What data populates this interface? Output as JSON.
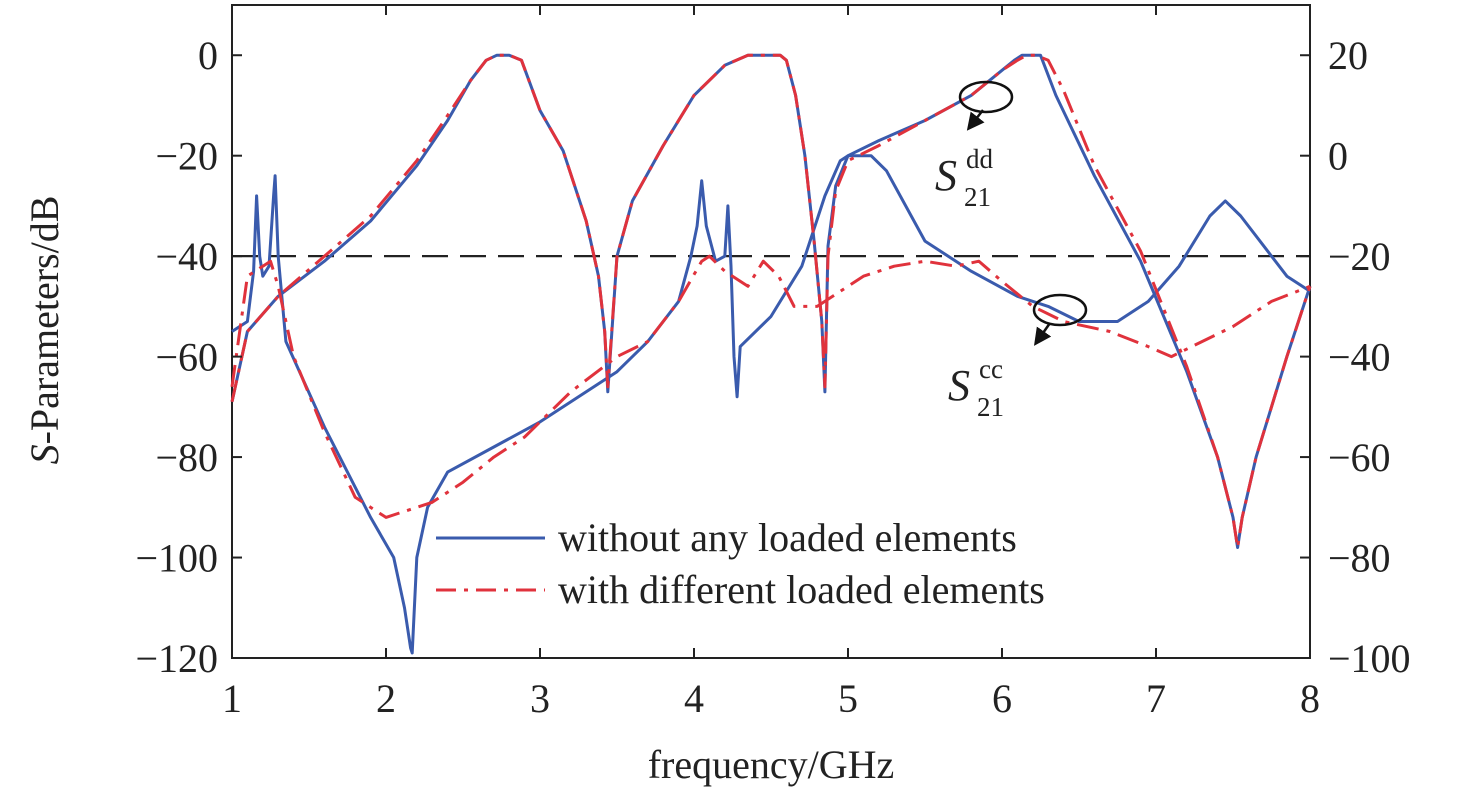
{
  "chart_data": {
    "type": "line",
    "xlabel": "frequency/GHz",
    "ylabel_left_italic": "S",
    "ylabel_left_rest": "-Parameters/dB",
    "xlim": [
      1,
      8
    ],
    "ylim_left": [
      -120,
      10
    ],
    "ylim_right": [
      -100,
      30
    ],
    "x_ticks": [
      "1",
      "2",
      "3",
      "4",
      "5",
      "6",
      "7",
      "8"
    ],
    "y_ticks_left": [
      "0",
      "−20",
      "−40",
      "−60",
      "−80",
      "−100",
      "−120"
    ],
    "y_ticks_right": [
      "20",
      "0",
      "−20",
      "−40",
      "−60",
      "−80",
      "−100"
    ],
    "grid": false,
    "legend_position": "bottom-center",
    "reference_line": {
      "y": -40,
      "style": "dashed"
    },
    "colors": {
      "solid": "#3a5bad",
      "dashdot": "#e0323c",
      "ref": "#222222"
    },
    "legend": [
      {
        "label": "without any loaded elements",
        "style": "solid",
        "color": "#3a5bad"
      },
      {
        "label": "with different loaded elements",
        "style": "dashdot",
        "color": "#e0323c"
      }
    ],
    "annotations": [
      {
        "text_main": "S",
        "text_sub": "21",
        "text_sup": "dd",
        "points_to": {
          "x": 5.9,
          "y": -9
        }
      },
      {
        "text_main": "S",
        "text_sup": "cc",
        "text_sub": "21",
        "points_to": {
          "x": 6.35,
          "y": -52
        }
      }
    ],
    "series": [
      {
        "style": "solid",
        "group": "S21dd",
        "x": [
          1.0,
          1.1,
          1.3,
          1.6,
          1.9,
          2.2,
          2.4,
          2.55,
          2.65,
          2.72,
          2.8,
          2.88,
          3.0,
          3.15,
          3.3,
          3.38,
          3.42,
          3.44,
          3.5,
          3.6,
          3.8,
          4.0,
          4.2,
          4.35,
          4.42,
          4.5,
          4.56,
          4.6,
          4.66,
          4.72,
          4.78,
          4.83,
          4.85,
          4.87,
          4.92,
          5.0,
          5.2,
          5.5,
          5.8,
          6.0,
          6.08,
          6.13,
          6.2,
          6.25,
          6.35,
          6.6,
          6.9,
          7.2,
          7.4,
          7.5,
          7.53,
          7.56,
          7.65,
          7.85,
          8.0
        ],
        "y": [
          -69,
          -55,
          -48,
          -41,
          -33,
          -22,
          -13,
          -5,
          -1,
          0,
          0,
          -1,
          -11,
          -19,
          -33,
          -44,
          -55,
          -67,
          -40,
          -29,
          -18,
          -8,
          -2,
          0,
          0,
          0,
          0,
          -1,
          -8,
          -20,
          -37,
          -53,
          -67,
          -38,
          -26,
          -20,
          -17,
          -13,
          -8,
          -3,
          -1,
          0,
          0,
          0,
          -8,
          -24,
          -41,
          -63,
          -80,
          -92,
          -98,
          -92,
          -80,
          -60,
          -46
        ]
      },
      {
        "style": "solid",
        "group": "S21cc",
        "x": [
          1.0,
          1.1,
          1.14,
          1.16,
          1.18,
          1.2,
          1.24,
          1.27,
          1.28,
          1.3,
          1.35,
          1.6,
          1.9,
          2.05,
          2.12,
          2.16,
          2.17,
          2.2,
          2.27,
          2.4,
          2.7,
          3.0,
          3.5,
          3.7,
          3.9,
          3.98,
          4.02,
          4.05,
          4.08,
          4.14,
          4.2,
          4.22,
          4.24,
          4.26,
          4.28,
          4.3,
          4.5,
          4.7,
          4.85,
          4.95,
          5.0,
          5.1,
          5.15,
          5.25,
          5.5,
          5.8,
          6.1,
          6.3,
          6.5,
          6.75,
          6.95,
          7.15,
          7.35,
          7.45,
          7.55,
          7.7,
          7.85,
          8.0
        ],
        "y": [
          -55,
          -53,
          -43,
          -28,
          -40,
          -44,
          -42,
          -28,
          -24,
          -40,
          -57,
          -74,
          -92,
          -100,
          -110,
          -118,
          -119,
          -100,
          -90,
          -83,
          -78,
          -73,
          -63,
          -57,
          -49,
          -40,
          -34,
          -25,
          -34,
          -41,
          -40,
          -30,
          -42,
          -60,
          -68,
          -58,
          -52,
          -42,
          -28,
          -21,
          -20,
          -20,
          -20,
          -23,
          -37,
          -43,
          -48,
          -50,
          -53,
          -53,
          -49,
          -42,
          -32,
          -29,
          -32,
          -38,
          -44,
          -47
        ]
      },
      {
        "style": "dashdot",
        "group": "S21dd",
        "x": [
          1.0,
          1.1,
          1.3,
          1.6,
          1.9,
          2.2,
          2.4,
          2.55,
          2.65,
          2.72,
          2.8,
          2.88,
          3.0,
          3.15,
          3.3,
          3.38,
          3.42,
          3.44,
          3.5,
          3.6,
          3.8,
          4.0,
          4.2,
          4.35,
          4.42,
          4.5,
          4.56,
          4.6,
          4.66,
          4.72,
          4.78,
          4.83,
          4.85,
          4.87,
          4.92,
          5.0,
          5.2,
          5.5,
          5.8,
          6.0,
          6.1,
          6.16,
          6.22,
          6.3,
          6.4,
          6.6,
          6.9,
          7.2,
          7.4,
          7.5,
          7.53,
          7.56,
          7.65,
          7.85,
          8.0
        ],
        "y": [
          -69,
          -55,
          -48,
          -40,
          -32,
          -21,
          -12,
          -5,
          -1,
          0,
          0,
          -1,
          -11,
          -19,
          -33,
          -44,
          -55,
          -66,
          -40,
          -29,
          -18,
          -8,
          -2,
          0,
          0,
          0,
          0,
          -1,
          -8,
          -20,
          -37,
          -53,
          -66,
          -40,
          -27,
          -21,
          -18,
          -13,
          -8,
          -3,
          -1,
          0,
          0,
          -1,
          -7,
          -22,
          -39,
          -62,
          -80,
          -92,
          -98,
          -92,
          -80,
          -60,
          -46
        ]
      },
      {
        "style": "dashdot",
        "group": "S21cc",
        "x": [
          1.0,
          1.05,
          1.1,
          1.15,
          1.2,
          1.25,
          1.3,
          1.4,
          1.6,
          1.8,
          2.0,
          2.3,
          2.5,
          2.7,
          2.9,
          3.2,
          3.5,
          3.7,
          3.9,
          4.05,
          4.1,
          4.2,
          4.35,
          4.45,
          4.55,
          4.65,
          4.8,
          4.95,
          5.1,
          5.3,
          5.5,
          5.7,
          5.85,
          6.0,
          6.2,
          6.4,
          6.7,
          6.95,
          7.1,
          7.3,
          7.5,
          7.75,
          8.0
        ],
        "y": [
          -66,
          -55,
          -44,
          -43,
          -42,
          -41,
          -46,
          -60,
          -75,
          -88,
          -92,
          -89,
          -85,
          -80,
          -76,
          -67,
          -60,
          -57,
          -49,
          -41,
          -40,
          -43,
          -46,
          -41,
          -44,
          -50,
          -50,
          -47,
          -44,
          -42,
          -41,
          -42,
          -41,
          -45,
          -50,
          -53,
          -55,
          -58,
          -60,
          -57,
          -54,
          -49,
          -46
        ]
      }
    ]
  }
}
